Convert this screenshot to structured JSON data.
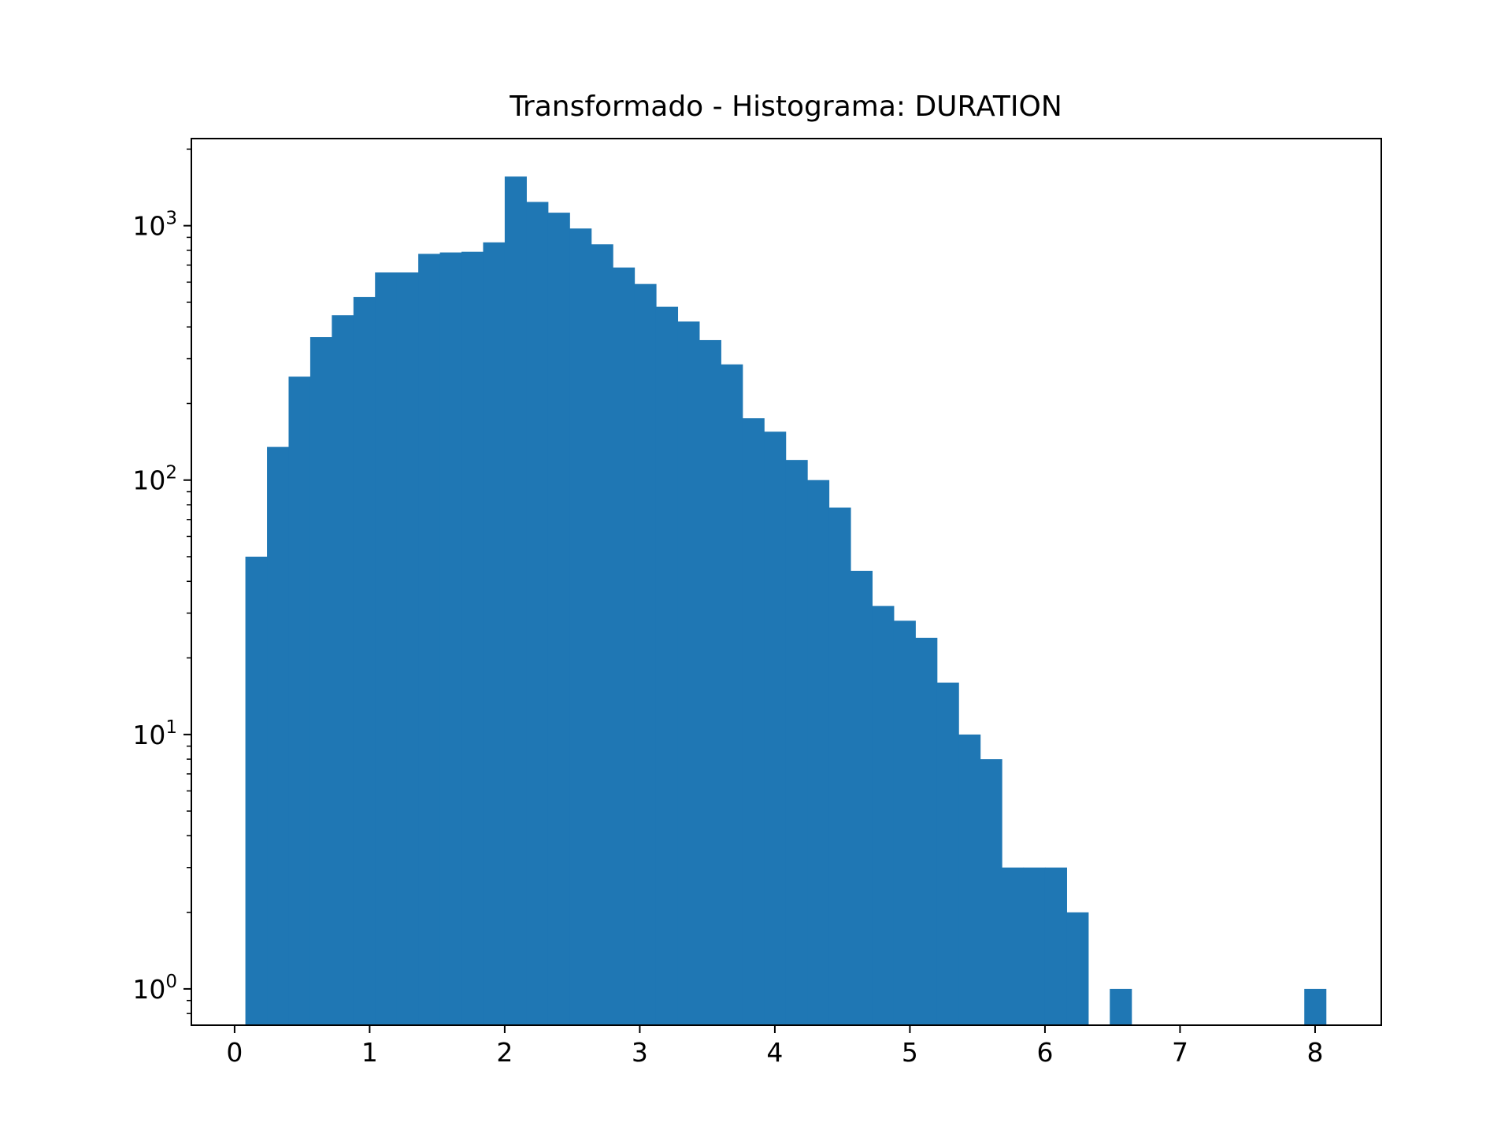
{
  "chart_data": {
    "type": "bar",
    "title": "Transformado - Histograma: DURATION",
    "xlabel": "",
    "ylabel": "",
    "yscale": "log",
    "xlim": [
      -0.32,
      8.49
    ],
    "ylim": [
      0.72,
      2200
    ],
    "x_ticks": [
      0,
      1,
      2,
      3,
      4,
      5,
      6,
      7,
      8
    ],
    "x_tick_labels": [
      "0",
      "1",
      "2",
      "3",
      "4",
      "5",
      "6",
      "7",
      "8"
    ],
    "y_ticks": [
      1,
      10,
      100,
      1000
    ],
    "y_tick_labels": [
      {
        "base": "10",
        "exp": "0"
      },
      {
        "base": "10",
        "exp": "1"
      },
      {
        "base": "10",
        "exp": "2"
      },
      {
        "base": "10",
        "exp": "3"
      }
    ],
    "grid": false,
    "legend": "none",
    "color": "#1f77b4",
    "bin_start": 0.08,
    "bin_width": 0.16,
    "counts": [
      50,
      135,
      255,
      365,
      445,
      525,
      655,
      655,
      775,
      785,
      790,
      860,
      1560,
      1240,
      1125,
      975,
      845,
      685,
      590,
      480,
      420,
      355,
      285,
      175,
      155,
      120,
      100,
      78,
      44,
      32,
      28,
      24,
      16,
      10,
      8,
      3,
      3,
      3,
      2,
      0,
      1,
      0,
      0,
      0,
      0,
      0,
      0,
      0,
      0,
      1
    ]
  }
}
